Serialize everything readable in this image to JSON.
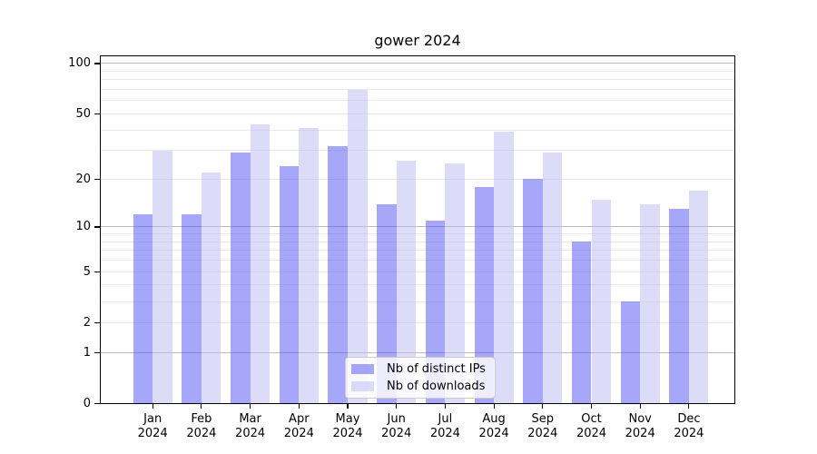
{
  "chart_data": {
    "type": "bar",
    "title": "gower 2024",
    "categories": [
      "Jan",
      "Feb",
      "Mar",
      "Apr",
      "May",
      "Jun",
      "Jul",
      "Aug",
      "Sep",
      "Oct",
      "Nov",
      "Dec"
    ],
    "x_tick_year": "2024",
    "series": [
      {
        "name": "Nb of distinct IPs",
        "color": "rgba(80,80,245,0.5)",
        "values": [
          12,
          12,
          29,
          24,
          32,
          14,
          11,
          18,
          20,
          8,
          3,
          13
        ]
      },
      {
        "name": "Nb of downloads",
        "color": "rgba(185,185,241,0.5)",
        "values": [
          30,
          22,
          43,
          41,
          70,
          26,
          25,
          39,
          29,
          15,
          14,
          17
        ]
      }
    ],
    "y_axis": {
      "scale": "log1p",
      "tick_values": [
        0,
        1,
        2,
        5,
        10,
        20,
        50,
        100
      ],
      "tick_labels": [
        "0",
        "1",
        "2",
        "5",
        "10",
        "20",
        "50",
        "100"
      ],
      "range": [
        0,
        112
      ]
    },
    "xlabel": "",
    "ylabel": "",
    "grid": {
      "minor_values": [
        2,
        3,
        4,
        5,
        6,
        7,
        8,
        9,
        20,
        30,
        40,
        50,
        60,
        70,
        80,
        90
      ],
      "major_values": [
        1,
        10,
        100
      ],
      "minor_color": "#e9e9e9",
      "major_color": "#bdbdbd"
    },
    "legend": {
      "position": "lower center"
    }
  }
}
